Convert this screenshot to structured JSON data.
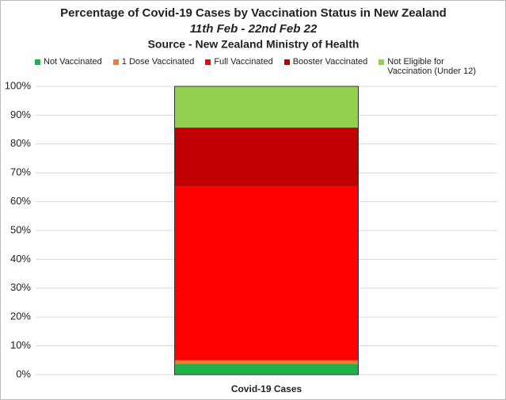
{
  "chart_data": {
    "type": "stacked_bar",
    "title": "Percentage of Covid-19 Cases by Vaccination Status in New Zealand",
    "subtitle": "11th Feb - 22nd Feb 22",
    "source": "Source - New Zealand Ministry of Health",
    "categories": [
      "Covid-19 Cases"
    ],
    "series": [
      {
        "name": "Not Vaccinated",
        "color": "#1db34a",
        "values": [
          3.8
        ]
      },
      {
        "name": "1 Dose Vaccinated",
        "color": "#ed7d31",
        "values": [
          1.2
        ]
      },
      {
        "name": "Full Vaccinated",
        "color": "#ff0000",
        "values": [
          60.4
        ]
      },
      {
        "name": "Booster Vaccinated",
        "color": "#c00000",
        "values": [
          20.3
        ]
      },
      {
        "name": "Not Eligible for Vaccination (Under 12)",
        "color": "#92d050",
        "values": [
          14.3
        ]
      }
    ],
    "ylim": [
      0,
      100
    ],
    "yticks": [
      {
        "value": 0,
        "label": "0%"
      },
      {
        "value": 10,
        "label": "10%"
      },
      {
        "value": 20,
        "label": "20%"
      },
      {
        "value": 30,
        "label": "30%"
      },
      {
        "value": 40,
        "label": "40%"
      },
      {
        "value": 50,
        "label": "50%"
      },
      {
        "value": 60,
        "label": "60%"
      },
      {
        "value": 70,
        "label": "70%"
      },
      {
        "value": 80,
        "label": "80%"
      },
      {
        "value": 90,
        "label": "90%"
      },
      {
        "value": 100,
        "label": "100%"
      }
    ],
    "grid": true
  }
}
